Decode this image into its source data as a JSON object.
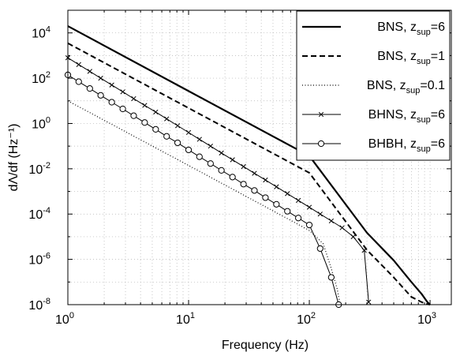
{
  "chart_data": {
    "type": "line",
    "xlabel": "Frequency (Hz)",
    "ylabel": "dΛ/df (Hz⁻¹)",
    "xscale": "log",
    "yscale": "log",
    "xlim": [
      1,
      1500
    ],
    "ylim": [
      1e-08,
      100000.0
    ],
    "grid": true,
    "legend_position": "top-right",
    "x_ticks": [
      {
        "value": 1,
        "label": "10",
        "exp": "0"
      },
      {
        "value": 10,
        "label": "10",
        "exp": "1"
      },
      {
        "value": 100,
        "label": "10",
        "exp": "2"
      },
      {
        "value": 1000,
        "label": "10",
        "exp": "3"
      }
    ],
    "y_ticks": [
      {
        "value": 1e-08,
        "label": "10",
        "exp": "-8"
      },
      {
        "value": 1e-06,
        "label": "10",
        "exp": "-6"
      },
      {
        "value": 0.0001,
        "label": "10",
        "exp": "-4"
      },
      {
        "value": 0.01,
        "label": "10",
        "exp": "-2"
      },
      {
        "value": 1,
        "label": "10",
        "exp": "0"
      },
      {
        "value": 100.0,
        "label": "10",
        "exp": "2"
      },
      {
        "value": 10000.0,
        "label": "10",
        "exp": "4"
      }
    ],
    "series": [
      {
        "name": "BNS, z_sup=6",
        "legend": {
          "main": "BNS, z",
          "sub": "sup",
          "tail": "=6"
        },
        "style": "solid",
        "width": 2.2,
        "marker": "none",
        "color": "#000000",
        "x": [
          1,
          10,
          100,
          300,
          500,
          700,
          850,
          950,
          1000
        ],
        "y": [
          20000,
          27,
          0.037,
          1.5e-05,
          9e-07,
          1e-07,
          3e-08,
          1.3e-08,
          1e-08
        ]
      },
      {
        "name": "BNS, z_sup=1",
        "legend": {
          "main": "BNS, z",
          "sub": "sup",
          "tail": "=1"
        },
        "style": "dashed",
        "width": 2.0,
        "marker": "none",
        "color": "#000000",
        "x": [
          1,
          10,
          100,
          300,
          500,
          700,
          850,
          950,
          1000
        ],
        "y": [
          3500,
          4.8,
          0.0066,
          2.6e-06,
          1.6e-07,
          2.2e-08,
          1.3e-08,
          1.05e-08,
          1e-08
        ]
      },
      {
        "name": "BNS, z_sup=0.1",
        "legend": {
          "main": "BNS, z",
          "sub": "sup",
          "tail": "=0.1"
        },
        "style": "dotted",
        "width": 1.2,
        "marker": "none",
        "color": "#000000",
        "x": [
          1,
          10,
          100,
          130,
          150,
          170,
          180
        ],
        "y": [
          10,
          0.014,
          1.9e-05,
          5e-06,
          5e-07,
          5e-08,
          1e-08
        ]
      },
      {
        "name": "BHNS, z_sup=6",
        "legend": {
          "main": "BHNS, z",
          "sub": "sup",
          "tail": "=6"
        },
        "style": "solid",
        "width": 1.0,
        "marker": "x",
        "color": "#000000",
        "x": [
          1,
          1.23,
          1.52,
          1.87,
          2.31,
          2.85,
          3.51,
          4.33,
          5.34,
          6.58,
          8.11,
          10,
          12.3,
          15.2,
          18.7,
          23.1,
          28.5,
          35.1,
          43.3,
          53.4,
          65.8,
          81.1,
          100,
          123,
          152,
          187,
          231,
          285,
          310
        ],
        "y": [
          800,
          400,
          200,
          100,
          50,
          25,
          12.5,
          6.3,
          3.2,
          1.6,
          0.8,
          0.4,
          0.2,
          0.1,
          0.05,
          0.025,
          0.0125,
          0.0063,
          0.0032,
          0.0016,
          0.0008,
          0.0004,
          0.0002,
          0.0001,
          5e-05,
          2.5e-05,
          1e-05,
          2.5e-06,
          1.3e-08
        ]
      },
      {
        "name": "BHBH, z_sup=6",
        "legend": {
          "main": "BHBH, z",
          "sub": "sup",
          "tail": "=6"
        },
        "style": "solid",
        "width": 1.0,
        "marker": "o",
        "color": "#000000",
        "x": [
          1,
          1.23,
          1.52,
          1.87,
          2.31,
          2.85,
          3.51,
          4.33,
          5.34,
          6.58,
          8.11,
          10,
          12.3,
          15.2,
          18.7,
          23.1,
          28.5,
          35.1,
          43.3,
          53.4,
          65.8,
          81.1,
          100,
          123,
          152,
          175
        ],
        "y": [
          140,
          70,
          35,
          17.5,
          8.7,
          4.4,
          2.2,
          1.1,
          0.55,
          0.27,
          0.14,
          0.068,
          0.034,
          0.017,
          0.0085,
          0.0043,
          0.0021,
          0.0011,
          0.00053,
          0.00027,
          0.000133,
          6.7e-05,
          3.3e-05,
          3e-06,
          1.6e-07,
          1e-08
        ]
      }
    ]
  }
}
